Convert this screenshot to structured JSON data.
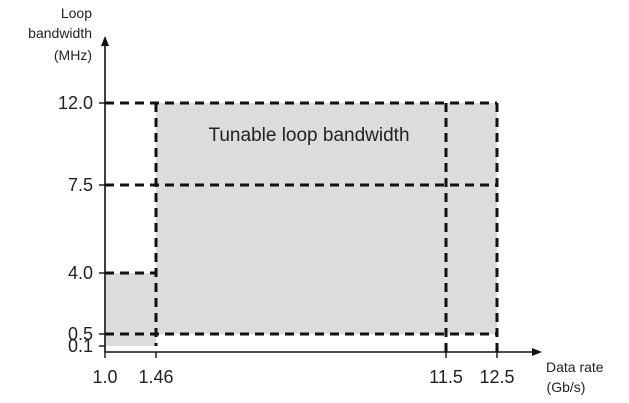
{
  "chart_data": {
    "type": "area",
    "title": "",
    "xlabel": [
      "Data rate",
      "(Gb/s)"
    ],
    "ylabel": [
      "Loop",
      "bandwidth",
      "(MHz)"
    ],
    "x_ticks": [
      1.0,
      1.46,
      11.5,
      12.5
    ],
    "x_tick_labels": [
      "1.0",
      "1.46",
      "11.5",
      "12.5"
    ],
    "y_ticks": [
      0.1,
      0.5,
      4.0,
      7.5,
      12.0
    ],
    "y_tick_labels": [
      "0.1",
      "0.5",
      "4.0",
      "7.5",
      "12.0"
    ],
    "regions": [
      {
        "x": [
          1.0,
          1.46
        ],
        "y": [
          0.1,
          4.0
        ]
      },
      {
        "x": [
          1.46,
          12.5
        ],
        "y": [
          0.5,
          12.0
        ]
      }
    ],
    "dashed_vertical_lines": [
      {
        "x": 1.46,
        "y": [
          0.1,
          12.0
        ]
      },
      {
        "x": 11.5,
        "y": [
          0.0,
          12.0
        ]
      },
      {
        "x": 12.5,
        "y": [
          0.0,
          12.0
        ]
      }
    ],
    "dashed_horizontal_lines": [
      {
        "y": 12.0,
        "x": [
          0.0,
          12.5
        ]
      },
      {
        "y": 7.5,
        "x": [
          0.0,
          12.5
        ]
      },
      {
        "y": 4.0,
        "x": [
          0.0,
          1.46
        ]
      },
      {
        "y": 0.5,
        "x": [
          0.0,
          12.5
        ]
      }
    ],
    "annotations": [
      {
        "text": "Tunable loop bandwidth",
        "x": 6.5,
        "y": 10.3
      }
    ],
    "grid": false,
    "legend": "none"
  }
}
